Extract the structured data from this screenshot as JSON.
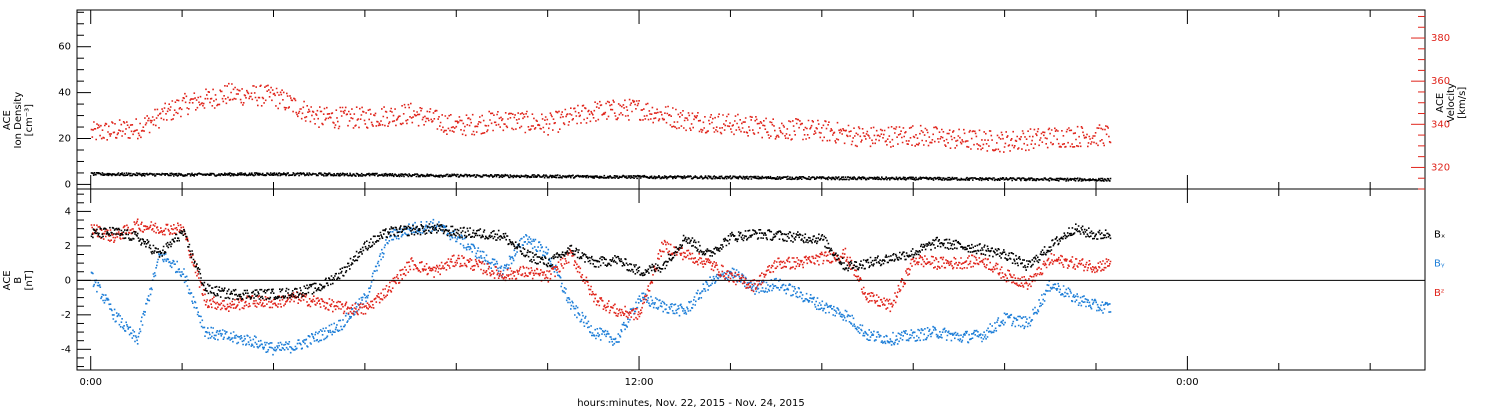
{
  "chart_data": [
    {
      "type": "scatter",
      "panel": "top",
      "ylabel_left": [
        "ACE",
        "Ion Density",
        "[cm⁻³]"
      ],
      "ylabel_right": [
        "ACE",
        "Velocity",
        "[km/s]"
      ],
      "ylim_left": [
        -2,
        76
      ],
      "yticks_left": [
        0,
        20,
        40,
        60
      ],
      "ylim_right": [
        310,
        393
      ],
      "yticks_right": [
        320,
        340,
        360,
        380
      ],
      "series": [
        {
          "color": "#000000",
          "axis": "left",
          "x": [
            0,
            2,
            4,
            6,
            8,
            10,
            12,
            14,
            16,
            18,
            20,
            22.3
          ],
          "values": [
            4.5,
            4.2,
            4.5,
            4.2,
            3.8,
            3.5,
            3.2,
            3.0,
            2.7,
            2.5,
            2.3,
            2.0
          ]
        },
        {
          "color": "#e0241b",
          "axis": "right",
          "x": [
            0,
            1,
            2,
            3,
            4,
            5,
            6,
            7,
            8,
            9,
            10,
            11,
            12,
            13,
            14,
            15,
            16,
            17,
            18,
            19,
            20,
            21,
            22.3
          ],
          "values": [
            336,
            338,
            349,
            354,
            353,
            343,
            343,
            345,
            339,
            342,
            340,
            346,
            347,
            342,
            340,
            338,
            337,
            334,
            335,
            333,
            332,
            334,
            335
          ]
        }
      ]
    },
    {
      "type": "scatter",
      "panel": "bottom",
      "ylabel": [
        "ACE",
        "B",
        "[nT]"
      ],
      "ylim": [
        -5.2,
        5.3
      ],
      "yticks": [
        -4,
        -2,
        0,
        2,
        4
      ],
      "series": [
        {
          "name": "Bₓ",
          "color": "#000000",
          "x": [
            0,
            0.5,
            1,
            1.5,
            2,
            2.5,
            3,
            3.5,
            4,
            4.5,
            5,
            5.5,
            6,
            6.5,
            7,
            7.5,
            8,
            8.5,
            9,
            9.5,
            10,
            10.5,
            11,
            11.5,
            12,
            12.5,
            13,
            13.5,
            14,
            14.5,
            15,
            15.5,
            16,
            16.5,
            17,
            17.5,
            18,
            18.5,
            19,
            19.5,
            20,
            20.5,
            21,
            21.5,
            22,
            22.3
          ],
          "values": [
            2.7,
            2.8,
            2.5,
            1.5,
            2.8,
            -0.5,
            -0.8,
            -0.8,
            -0.8,
            -0.7,
            -0.4,
            0.5,
            2.0,
            2.8,
            2.9,
            3.0,
            2.8,
            2.7,
            2.6,
            1.5,
            1.0,
            1.8,
            1.0,
            1.2,
            0.5,
            0.8,
            2.5,
            1.5,
            2.5,
            2.7,
            2.6,
            2.5,
            2.4,
            0.8,
            1.0,
            1.3,
            1.6,
            2.2,
            2.0,
            1.8,
            1.5,
            0.8,
            2.0,
            3.0,
            2.6,
            2.7
          ]
        },
        {
          "name": "Bᵧ",
          "color": "#1f7fd8",
          "x": [
            0,
            0.5,
            1,
            1.5,
            2,
            2.5,
            3,
            3.5,
            4,
            4.5,
            5,
            5.5,
            6,
            6.5,
            7,
            7.5,
            8,
            8.5,
            9,
            9.5,
            10,
            10.5,
            11,
            11.5,
            12,
            12.5,
            13,
            13.5,
            14,
            14.5,
            15,
            15.5,
            16,
            16.5,
            17,
            17.5,
            18,
            18.5,
            19,
            19.5,
            20,
            20.5,
            21,
            21.5,
            22,
            22.3
          ],
          "values": [
            0.2,
            -2.0,
            -3.5,
            1.5,
            0.5,
            -3.0,
            -3.3,
            -3.5,
            -4.0,
            -3.8,
            -3.2,
            -2.5,
            -1.0,
            2.5,
            3.0,
            3.2,
            2.5,
            1.5,
            0.5,
            2.5,
            1.5,
            -1.5,
            -3.0,
            -3.5,
            -1.0,
            -1.5,
            -1.8,
            -0.2,
            0.5,
            -0.5,
            -0.2,
            -0.8,
            -1.5,
            -2.0,
            -3.2,
            -3.4,
            -3.2,
            -3.0,
            -3.3,
            -3.2,
            -2.2,
            -2.5,
            -0.2,
            -1.0,
            -1.5,
            -1.6
          ]
        },
        {
          "name": "Bᶻ",
          "color": "#e0241b",
          "x": [
            0,
            0.5,
            1,
            1.5,
            2,
            2.5,
            3,
            3.5,
            4,
            4.5,
            5,
            5.5,
            6,
            6.5,
            7,
            7.5,
            8,
            8.5,
            9,
            9.5,
            10,
            10.5,
            11,
            11.5,
            12,
            12.5,
            13,
            13.5,
            14,
            14.5,
            15,
            15.5,
            16,
            16.5,
            17,
            17.5,
            18,
            18.5,
            19,
            19.5,
            20,
            20.5,
            21,
            21.5,
            22,
            22.3
          ],
          "values": [
            3.0,
            2.5,
            3.2,
            3.0,
            3.0,
            -1.2,
            -1.5,
            -1.2,
            -1.3,
            -1.0,
            -1.3,
            -1.6,
            -1.7,
            -0.5,
            1.0,
            0.5,
            1.2,
            0.8,
            0.3,
            0.5,
            0.2,
            1.5,
            -1.0,
            -1.8,
            -2.0,
            2.0,
            1.5,
            1.0,
            0.2,
            -0.3,
            1.0,
            1.0,
            1.3,
            1.5,
            -1.0,
            -1.5,
            1.2,
            1.0,
            1.0,
            1.2,
            0.3,
            -0.2,
            1.2,
            1.0,
            0.8,
            1.0
          ]
        }
      ]
    }
  ],
  "xaxis": {
    "xlim": [
      -0.3,
      29.2
    ],
    "major_ticks": [
      0,
      12,
      24
    ],
    "tick_labels": [
      "0:00",
      "12:00",
      "0:00"
    ],
    "minor_step": 2,
    "label": "hours:minutes, Nov. 22, 2015 - Nov. 24, 2015"
  },
  "colors": {
    "black": "#000000",
    "red": "#e0241b",
    "blue": "#1f7fd8",
    "axis": "#000000"
  }
}
